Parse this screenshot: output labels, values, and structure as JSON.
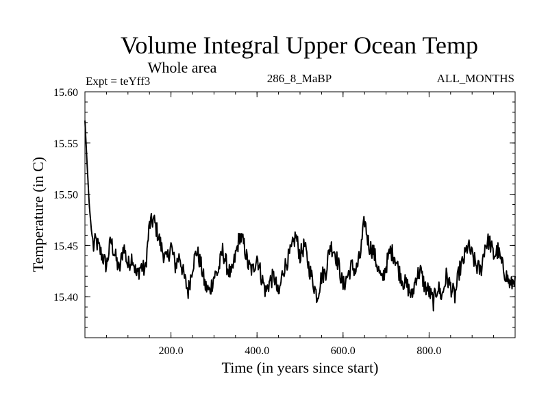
{
  "chart_data": {
    "type": "line",
    "title": "Volume Integral Upper Ocean Temp",
    "subtitle": "Whole area",
    "experiment_label": "Expt = teYff3",
    "run_label": "286_8_MaBP",
    "period_label": "ALL_MONTHS",
    "xlabel": "Time (in years since start)",
    "ylabel": "Temperature (in C)",
    "xlim": [
      0,
      1000
    ],
    "ylim": [
      15.36,
      15.6
    ],
    "x_ticks": [
      200,
      400,
      600,
      800
    ],
    "x_tick_labels": [
      "200.0",
      "400.0",
      "600.0",
      "800.0"
    ],
    "y_ticks": [
      15.4,
      15.45,
      15.5,
      15.55,
      15.6
    ],
    "y_tick_labels": [
      "15.40",
      "15.45",
      "15.50",
      "15.55",
      "15.60"
    ],
    "grid": false,
    "series": [
      {
        "name": "teYff3",
        "x": [
          0,
          5,
          10,
          15,
          20,
          25,
          30,
          40,
          50,
          60,
          70,
          80,
          90,
          100,
          110,
          120,
          130,
          140,
          150,
          160,
          170,
          180,
          190,
          200,
          210,
          220,
          230,
          240,
          250,
          260,
          270,
          280,
          290,
          300,
          310,
          320,
          330,
          340,
          350,
          360,
          370,
          380,
          390,
          400,
          410,
          420,
          430,
          440,
          450,
          460,
          470,
          480,
          490,
          500,
          510,
          520,
          530,
          540,
          550,
          560,
          570,
          580,
          590,
          600,
          610,
          620,
          630,
          640,
          650,
          660,
          670,
          680,
          690,
          700,
          710,
          720,
          730,
          740,
          750,
          760,
          770,
          780,
          790,
          800,
          810,
          820,
          830,
          840,
          850,
          860,
          870,
          880,
          890,
          900,
          910,
          920,
          930,
          940,
          950,
          960,
          970,
          980,
          990,
          1000
        ],
        "values": [
          15.572,
          15.53,
          15.49,
          15.465,
          15.448,
          15.455,
          15.45,
          15.44,
          15.43,
          15.455,
          15.44,
          15.425,
          15.45,
          15.43,
          15.44,
          15.42,
          15.43,
          15.425,
          15.47,
          15.475,
          15.46,
          15.445,
          15.435,
          15.45,
          15.43,
          15.44,
          15.42,
          15.405,
          15.43,
          15.445,
          15.43,
          15.41,
          15.405,
          15.42,
          15.425,
          15.445,
          15.43,
          15.42,
          15.44,
          15.46,
          15.45,
          15.43,
          15.425,
          15.44,
          15.42,
          15.405,
          15.415,
          15.42,
          15.4,
          15.425,
          15.435,
          15.445,
          15.46,
          15.44,
          15.45,
          15.43,
          15.415,
          15.4,
          15.42,
          15.425,
          15.45,
          15.445,
          15.43,
          15.41,
          15.42,
          15.43,
          15.425,
          15.44,
          15.475,
          15.45,
          15.445,
          15.43,
          15.415,
          15.43,
          15.445,
          15.44,
          15.425,
          15.415,
          15.41,
          15.4,
          15.42,
          15.425,
          15.41,
          15.405,
          15.395,
          15.41,
          15.4,
          15.42,
          15.41,
          15.4,
          15.425,
          15.435,
          15.45,
          15.44,
          15.43,
          15.425,
          15.45,
          15.455,
          15.44,
          15.445,
          15.43,
          15.42,
          15.41,
          15.42
        ],
        "color": "#000000"
      }
    ]
  }
}
